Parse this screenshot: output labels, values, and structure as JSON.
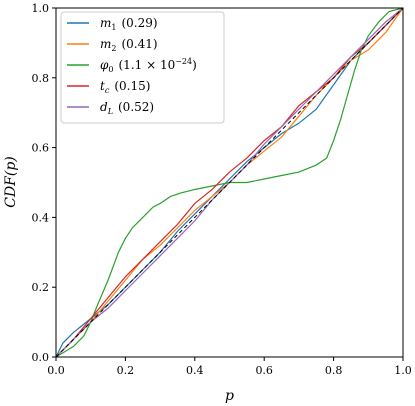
{
  "chart_data": {
    "type": "line",
    "title": "",
    "xlabel": "p",
    "ylabel": "CDF(p)",
    "xlim": [
      0,
      1
    ],
    "ylim": [
      0,
      1
    ],
    "x_ticks": [
      "0.0",
      "0.2",
      "0.4",
      "0.6",
      "0.8",
      "1.0"
    ],
    "y_ticks": [
      "0.0",
      "0.2",
      "0.4",
      "0.6",
      "0.8",
      "1.0"
    ],
    "legend_position": "top-left",
    "grid": false,
    "reference_line": {
      "points": [
        [
          0,
          0
        ],
        [
          1,
          1
        ]
      ],
      "color": "#000000",
      "style": "dashed"
    },
    "series": [
      {
        "name": "m1",
        "legend_base": "m",
        "legend_sub": "1",
        "legend_value": "(0.29)",
        "color": "#1f77b4",
        "points": [
          [
            0,
            0
          ],
          [
            0.02,
            0.04
          ],
          [
            0.05,
            0.07
          ],
          [
            0.1,
            0.11
          ],
          [
            0.15,
            0.15
          ],
          [
            0.2,
            0.2
          ],
          [
            0.25,
            0.25
          ],
          [
            0.3,
            0.3
          ],
          [
            0.35,
            0.36
          ],
          [
            0.4,
            0.41
          ],
          [
            0.45,
            0.46
          ],
          [
            0.5,
            0.51
          ],
          [
            0.55,
            0.56
          ],
          [
            0.6,
            0.6
          ],
          [
            0.65,
            0.64
          ],
          [
            0.7,
            0.67
          ],
          [
            0.75,
            0.71
          ],
          [
            0.8,
            0.78
          ],
          [
            0.85,
            0.85
          ],
          [
            0.9,
            0.9
          ],
          [
            0.95,
            0.95
          ],
          [
            1,
            1
          ]
        ]
      },
      {
        "name": "m2",
        "legend_base": "m",
        "legend_sub": "2",
        "legend_value": "(0.41)",
        "color": "#ff7f0e",
        "points": [
          [
            0,
            0
          ],
          [
            0.05,
            0.05
          ],
          [
            0.1,
            0.1
          ],
          [
            0.15,
            0.16
          ],
          [
            0.2,
            0.22
          ],
          [
            0.25,
            0.28
          ],
          [
            0.3,
            0.32
          ],
          [
            0.35,
            0.37
          ],
          [
            0.4,
            0.42
          ],
          [
            0.45,
            0.46
          ],
          [
            0.5,
            0.5
          ],
          [
            0.55,
            0.55
          ],
          [
            0.6,
            0.59
          ],
          [
            0.65,
            0.63
          ],
          [
            0.7,
            0.69
          ],
          [
            0.75,
            0.75
          ],
          [
            0.8,
            0.8
          ],
          [
            0.85,
            0.85
          ],
          [
            0.9,
            0.88
          ],
          [
            0.95,
            0.93
          ],
          [
            1,
            1
          ]
        ]
      },
      {
        "name": "phi0",
        "legend_base": "φ",
        "legend_sub": "0",
        "legend_value": "(1.1 × 10",
        "legend_sup": "−24",
        "legend_value_end": ")",
        "color": "#2ca02c",
        "points": [
          [
            0,
            0
          ],
          [
            0.05,
            0.03
          ],
          [
            0.08,
            0.06
          ],
          [
            0.1,
            0.1
          ],
          [
            0.12,
            0.15
          ],
          [
            0.15,
            0.22
          ],
          [
            0.18,
            0.3
          ],
          [
            0.2,
            0.34
          ],
          [
            0.22,
            0.37
          ],
          [
            0.25,
            0.4
          ],
          [
            0.28,
            0.43
          ],
          [
            0.3,
            0.44
          ],
          [
            0.33,
            0.46
          ],
          [
            0.36,
            0.47
          ],
          [
            0.4,
            0.48
          ],
          [
            0.45,
            0.49
          ],
          [
            0.5,
            0.5
          ],
          [
            0.55,
            0.5
          ],
          [
            0.6,
            0.51
          ],
          [
            0.65,
            0.52
          ],
          [
            0.7,
            0.53
          ],
          [
            0.75,
            0.55
          ],
          [
            0.78,
            0.57
          ],
          [
            0.8,
            0.62
          ],
          [
            0.82,
            0.68
          ],
          [
            0.84,
            0.75
          ],
          [
            0.86,
            0.82
          ],
          [
            0.88,
            0.88
          ],
          [
            0.9,
            0.92
          ],
          [
            0.93,
            0.96
          ],
          [
            0.96,
            0.99
          ],
          [
            1,
            1
          ]
        ]
      },
      {
        "name": "tc",
        "legend_base": "t",
        "legend_sub": "c",
        "legend_value": "(0.15)",
        "color": "#d62728",
        "points": [
          [
            0,
            0
          ],
          [
            0.05,
            0.05
          ],
          [
            0.1,
            0.11
          ],
          [
            0.15,
            0.17
          ],
          [
            0.2,
            0.23
          ],
          [
            0.25,
            0.28
          ],
          [
            0.3,
            0.33
          ],
          [
            0.35,
            0.38
          ],
          [
            0.4,
            0.44
          ],
          [
            0.45,
            0.48
          ],
          [
            0.5,
            0.53
          ],
          [
            0.55,
            0.57
          ],
          [
            0.6,
            0.62
          ],
          [
            0.65,
            0.66
          ],
          [
            0.7,
            0.72
          ],
          [
            0.75,
            0.76
          ],
          [
            0.8,
            0.8
          ],
          [
            0.85,
            0.86
          ],
          [
            0.9,
            0.9
          ],
          [
            0.95,
            0.95
          ],
          [
            1,
            1
          ]
        ]
      },
      {
        "name": "dL",
        "legend_base": "d",
        "legend_sub": "L",
        "legend_value": "(0.52)",
        "color": "#9467bd",
        "points": [
          [
            0,
            0
          ],
          [
            0.05,
            0.05
          ],
          [
            0.1,
            0.1
          ],
          [
            0.15,
            0.14
          ],
          [
            0.2,
            0.19
          ],
          [
            0.25,
            0.24
          ],
          [
            0.3,
            0.29
          ],
          [
            0.35,
            0.34
          ],
          [
            0.4,
            0.39
          ],
          [
            0.45,
            0.45
          ],
          [
            0.5,
            0.5
          ],
          [
            0.55,
            0.55
          ],
          [
            0.6,
            0.61
          ],
          [
            0.65,
            0.66
          ],
          [
            0.7,
            0.71
          ],
          [
            0.75,
            0.76
          ],
          [
            0.8,
            0.81
          ],
          [
            0.85,
            0.86
          ],
          [
            0.9,
            0.91
          ],
          [
            0.95,
            0.96
          ],
          [
            1,
            1
          ]
        ]
      }
    ]
  }
}
